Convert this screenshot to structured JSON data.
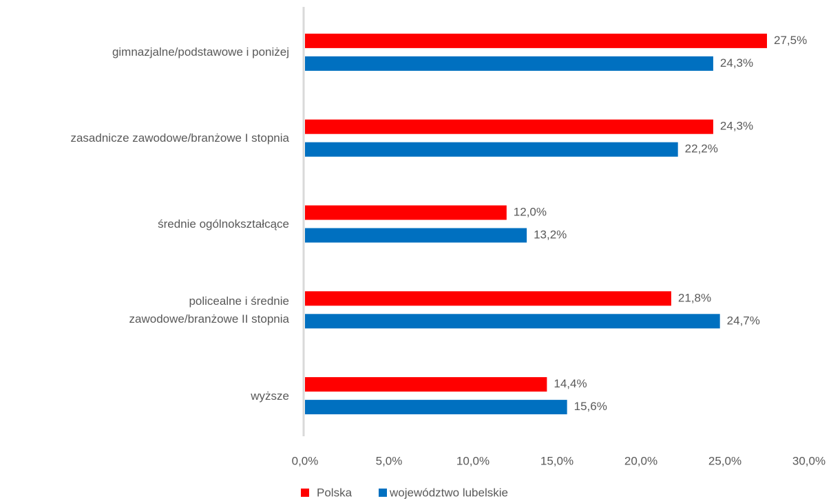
{
  "chart_data": {
    "type": "barh",
    "categories": [
      "gimnazjalne/podstawowe i poniżej",
      "zasadnicze zawodowe/branżowe I stopnia",
      "średnie ogólnokształcące",
      "policealne i średnie\nzawodowe/branżowe II stopnia",
      "wyższe"
    ],
    "series": [
      {
        "name": "Polska",
        "color": "#ff0000",
        "values": [
          27.5,
          24.3,
          12.0,
          21.8,
          14.4
        ],
        "value_labels": [
          "27,5%",
          "24,3%",
          "12,0%",
          "21,8%",
          "14,4%"
        ]
      },
      {
        "name": "województwo lubelskie",
        "color": "#0070c0",
        "values": [
          24.3,
          22.2,
          13.2,
          24.7,
          15.6
        ],
        "value_labels": [
          "24,3%",
          "22,2%",
          "13,2%",
          "24,7%",
          "15,6%"
        ]
      }
    ],
    "xlim": [
      0,
      30
    ],
    "xticks": [
      {
        "value": 0,
        "label": "0,0%"
      },
      {
        "value": 5,
        "label": "5,0%"
      },
      {
        "value": 10,
        "label": "10,0%"
      },
      {
        "value": 15,
        "label": "15,0%"
      },
      {
        "value": 20,
        "label": "20,0%"
      },
      {
        "value": 25,
        "label": "25,0%"
      },
      {
        "value": 30,
        "label": "30,0%"
      }
    ],
    "legend": "bottom"
  }
}
